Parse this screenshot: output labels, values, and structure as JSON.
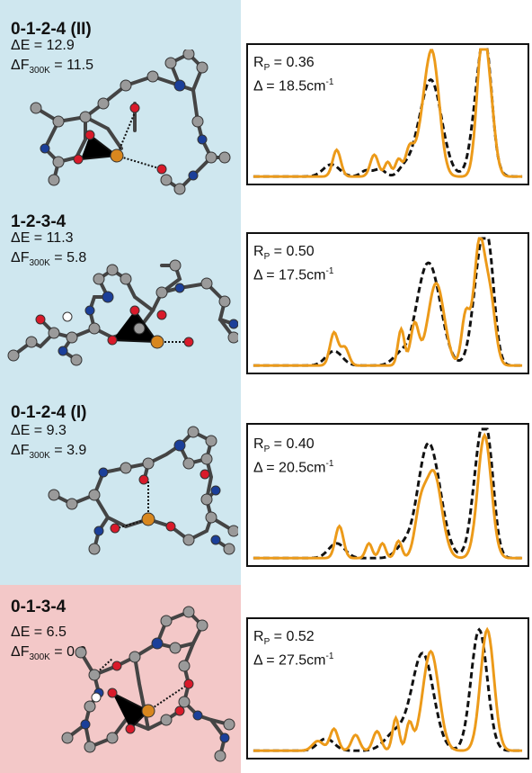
{
  "conformers": [
    {
      "title": "0-1-2-4 (II)",
      "delta_e_label": "ΔE = ",
      "delta_e_value": "12.9",
      "delta_f_prefix": "ΔF",
      "delta_f_sub": "300K",
      "delta_f_value": " = 11.5",
      "r_prefix": "R",
      "r_sub": "P",
      "r_value": " = 0.36",
      "shift_prefix": "Δ = 18.5cm",
      "shift_sup": "-1",
      "panel_color": "#cfe7ef",
      "exp_peaks": [
        [
          0.29,
          0.1,
          0.03
        ],
        [
          0.42,
          0.05,
          0.02
        ],
        [
          0.47,
          0.06,
          0.02
        ],
        [
          0.56,
          0.07,
          0.02
        ],
        [
          0.6,
          0.05,
          0.02
        ],
        [
          0.66,
          0.8,
          0.04
        ],
        [
          0.85,
          0.9,
          0.03
        ],
        [
          0.87,
          0.35,
          0.02
        ]
      ],
      "calc_peaks": [
        [
          0.31,
          0.22,
          0.015
        ],
        [
          0.45,
          0.18,
          0.015
        ],
        [
          0.5,
          0.12,
          0.012
        ],
        [
          0.54,
          0.14,
          0.012
        ],
        [
          0.58,
          0.2,
          0.015
        ],
        [
          0.64,
          0.45,
          0.03
        ],
        [
          0.67,
          0.74,
          0.025
        ],
        [
          0.85,
          1.0,
          0.02
        ],
        [
          0.88,
          0.5,
          0.02
        ]
      ]
    },
    {
      "title": "1-2-3-4",
      "delta_e_label": "ΔE = ",
      "delta_e_value": "11.3",
      "delta_f_prefix": "ΔF",
      "delta_f_sub": "300K",
      "delta_f_value": " = 5.8",
      "r_prefix": "R",
      "r_sub": "P",
      "r_value": " = 0.50",
      "shift_prefix": "Δ = 17.5cm",
      "shift_sup": "-1",
      "panel_color": "#cfe7ef",
      "exp_peaks": [
        [
          0.3,
          0.12,
          0.03
        ],
        [
          0.55,
          0.1,
          0.03
        ],
        [
          0.62,
          0.2,
          0.03
        ],
        [
          0.66,
          0.75,
          0.04
        ],
        [
          0.85,
          0.95,
          0.03
        ],
        [
          0.88,
          0.4,
          0.02
        ]
      ],
      "calc_peaks": [
        [
          0.3,
          0.27,
          0.015
        ],
        [
          0.34,
          0.15,
          0.015
        ],
        [
          0.55,
          0.3,
          0.012
        ],
        [
          0.6,
          0.34,
          0.015
        ],
        [
          0.68,
          0.68,
          0.03
        ],
        [
          0.79,
          0.42,
          0.015
        ],
        [
          0.84,
          0.98,
          0.02
        ],
        [
          0.88,
          0.55,
          0.02
        ]
      ]
    },
    {
      "title": "0-1-2-4 (I)",
      "delta_e_label": "ΔE = ",
      "delta_e_value": "9.3",
      "delta_f_prefix": "ΔF",
      "delta_f_sub": "300K",
      "delta_f_value": " = 3.9",
      "r_prefix": "R",
      "r_sub": "P",
      "r_value": " = 0.40",
      "shift_prefix": "Δ = 20.5cm",
      "shift_sup": "-1",
      "panel_color": "#cfe7ef",
      "exp_peaks": [
        [
          0.31,
          0.12,
          0.03
        ],
        [
          0.56,
          0.1,
          0.03
        ],
        [
          0.63,
          0.2,
          0.03
        ],
        [
          0.66,
          0.8,
          0.04
        ],
        [
          0.85,
          1.0,
          0.03
        ],
        [
          0.88,
          0.3,
          0.02
        ]
      ],
      "calc_peaks": [
        [
          0.32,
          0.26,
          0.015
        ],
        [
          0.43,
          0.12,
          0.012
        ],
        [
          0.48,
          0.12,
          0.012
        ],
        [
          0.54,
          0.14,
          0.012
        ],
        [
          0.62,
          0.32,
          0.02
        ],
        [
          0.67,
          0.7,
          0.03
        ],
        [
          0.86,
          1.0,
          0.025
        ]
      ]
    },
    {
      "title": "0-1-3-4",
      "delta_e_label": "ΔE = ",
      "delta_e_value": "6.5",
      "delta_f_prefix": "ΔF",
      "delta_f_sub": "300K",
      "delta_f_value": " = 0.0",
      "r_prefix": "R",
      "r_sub": "P",
      "r_value": " = 0.52",
      "shift_prefix": "Δ = 27.5cm",
      "shift_sup": "-1",
      "panel_color": "#f3c8c8",
      "exp_peaks": [
        [
          0.27,
          0.1,
          0.03
        ],
        [
          0.53,
          0.15,
          0.04
        ],
        [
          0.63,
          0.8,
          0.04
        ],
        [
          0.84,
          1.0,
          0.03
        ]
      ],
      "calc_peaks": [
        [
          0.24,
          0.08,
          0.02
        ],
        [
          0.3,
          0.18,
          0.015
        ],
        [
          0.38,
          0.13,
          0.015
        ],
        [
          0.46,
          0.16,
          0.015
        ],
        [
          0.53,
          0.27,
          0.012
        ],
        [
          0.58,
          0.22,
          0.012
        ],
        [
          0.66,
          0.82,
          0.03
        ],
        [
          0.87,
          1.0,
          0.025
        ]
      ]
    }
  ],
  "colors": {
    "experimental": "#111111",
    "calculated": "#ec9a19",
    "carbon": "#9a9a9a",
    "oxygen": "#d91a2a",
    "nitrogen": "#1b3f99",
    "metal": "#d8871f",
    "hydrogen": "#ffffff"
  }
}
